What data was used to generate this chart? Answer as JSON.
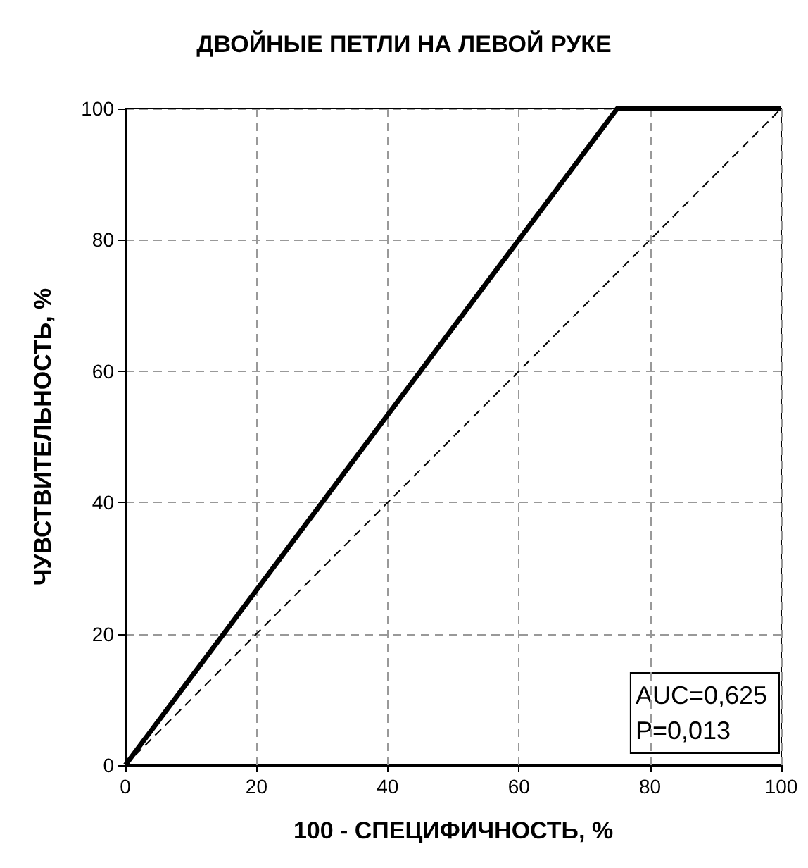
{
  "chart_data": {
    "type": "line",
    "title": "ДВОЙНЫЕ ПЕТЛИ НА ЛЕВОЙ РУКЕ",
    "xlabel": "100 - СПЕЦИФИЧНОСТЬ, %",
    "ylabel": "ЧУВСТВИТЕЛЬНОСТЬ, %",
    "x": [
      0,
      75,
      100
    ],
    "series": [
      {
        "color": "#000000",
        "values": [
          0,
          100,
          100
        ],
        "line_style": "solid"
      },
      {
        "color": "#000000",
        "x": [
          0,
          100
        ],
        "values": [
          0,
          100
        ],
        "line_style": "dashed"
      }
    ],
    "xlim": [
      0,
      100
    ],
    "xticks": [
      0,
      20,
      40,
      60,
      80,
      100
    ],
    "ylim": [
      0,
      100
    ],
    "yticks": [
      0,
      20,
      40,
      60,
      80,
      100
    ],
    "grid": true,
    "marker": "none",
    "annotations": [
      "AUC=0,625",
      "P=0,013"
    ]
  }
}
